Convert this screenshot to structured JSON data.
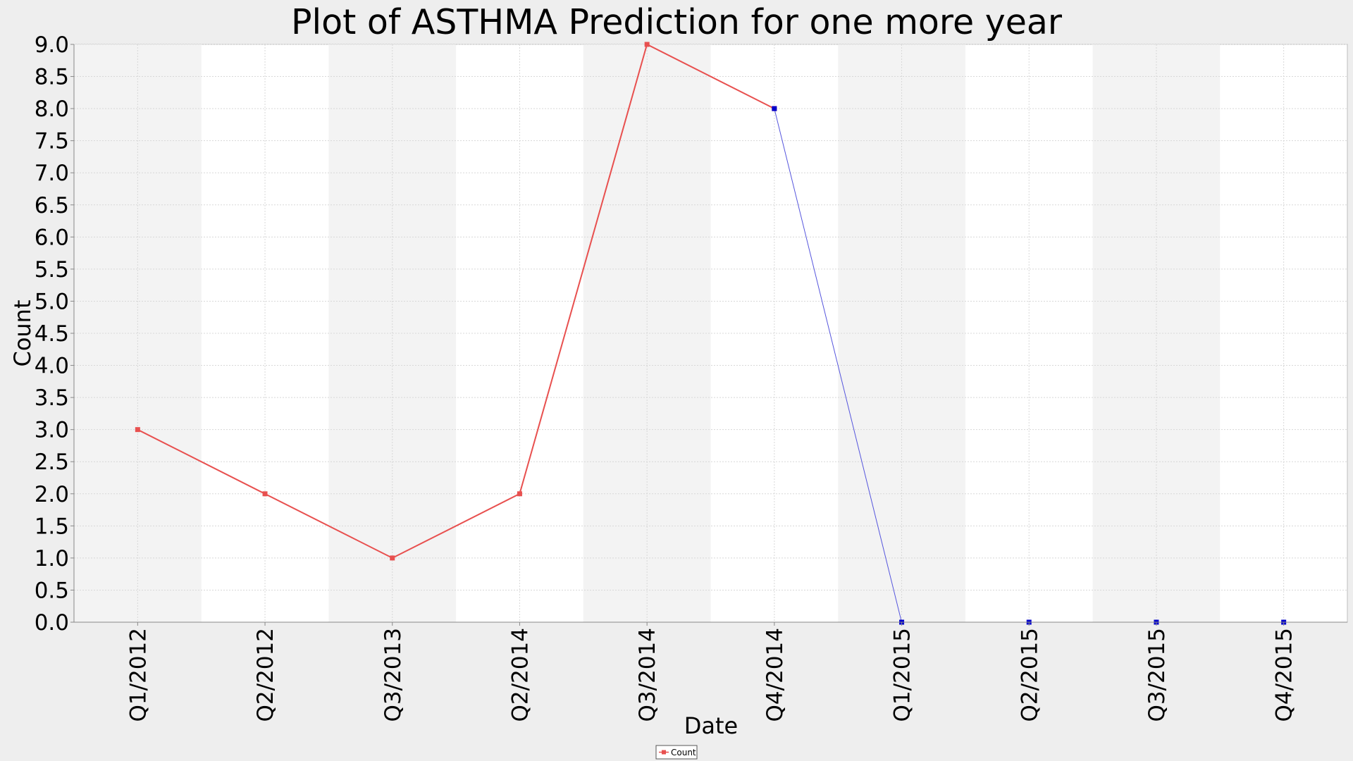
{
  "chart_data": {
    "type": "line",
    "title": "Plot of ASTHMA Prediction for one more year",
    "xlabel": "Date",
    "ylabel": "Count",
    "categories": [
      "Q1/2012",
      "Q2/2012",
      "Q3/2013",
      "Q2/2014",
      "Q3/2014",
      "Q4/2014",
      "Q1/2015",
      "Q2/2015",
      "Q3/2015",
      "Q4/2015"
    ],
    "ylim": [
      0,
      9.0
    ],
    "ytick_step": 0.5,
    "yticks": [
      "0.0",
      "0.5",
      "1.0",
      "1.5",
      "2.0",
      "2.5",
      "3.0",
      "3.5",
      "4.0",
      "4.5",
      "5.0",
      "5.5",
      "6.0",
      "6.5",
      "7.0",
      "7.5",
      "8.0",
      "8.5",
      "9.0"
    ],
    "grid": true,
    "legend_position": "bottom-center",
    "series": [
      {
        "name": "Count",
        "color": "#e8504f",
        "values": [
          3,
          2,
          1,
          2,
          9,
          8,
          null,
          null,
          null,
          null
        ]
      },
      {
        "color": "#5555dd",
        "marker_color": "#0000cc",
        "values": [
          null,
          null,
          null,
          null,
          null,
          8,
          0,
          0,
          0,
          0
        ]
      }
    ]
  }
}
